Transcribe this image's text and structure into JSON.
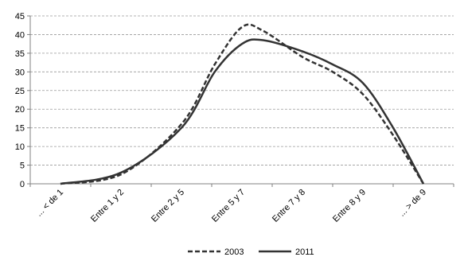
{
  "chart_data": {
    "type": "line",
    "categories": [
      "... < de 1",
      "Entre 1 y 2",
      "Entre 2 y 5",
      "Entre 5 y 7",
      "Entre 7 y 8",
      "Entre 8 y 9",
      "... > de 9"
    ],
    "ylim": [
      0,
      45
    ],
    "yticks": [
      0,
      5,
      10,
      15,
      20,
      25,
      30,
      35,
      40,
      45
    ],
    "grid": "horizontal-dashed",
    "legend_placement": "bottom",
    "series": [
      {
        "name": "2003",
        "style": "dashed",
        "color": "#333333",
        "points": [
          {
            "x": 0,
            "y": 0
          },
          {
            "x": 1,
            "y": 2.5
          },
          {
            "x": 2,
            "y": 16
          },
          {
            "x": 2.55,
            "y": 32
          },
          {
            "x": 3,
            "y": 42
          },
          {
            "x": 3.35,
            "y": 41
          },
          {
            "x": 4,
            "y": 34
          },
          {
            "x": 4.5,
            "y": 30
          },
          {
            "x": 5,
            "y": 24
          },
          {
            "x": 5.5,
            "y": 13
          },
          {
            "x": 6,
            "y": 0
          }
        ]
      },
      {
        "name": "2011",
        "style": "solid",
        "color": "#333333",
        "points": [
          {
            "x": 0,
            "y": 0
          },
          {
            "x": 1,
            "y": 3
          },
          {
            "x": 2,
            "y": 15
          },
          {
            "x": 2.55,
            "y": 30
          },
          {
            "x": 3,
            "y": 37.5
          },
          {
            "x": 3.35,
            "y": 38.5
          },
          {
            "x": 4,
            "y": 35.5
          },
          {
            "x": 4.5,
            "y": 32
          },
          {
            "x": 5,
            "y": 27
          },
          {
            "x": 5.5,
            "y": 15
          },
          {
            "x": 6,
            "y": 0
          }
        ]
      }
    ]
  },
  "legend": {
    "items": [
      {
        "label": "2003",
        "style": "dashed"
      },
      {
        "label": "2011",
        "style": "solid"
      }
    ]
  }
}
